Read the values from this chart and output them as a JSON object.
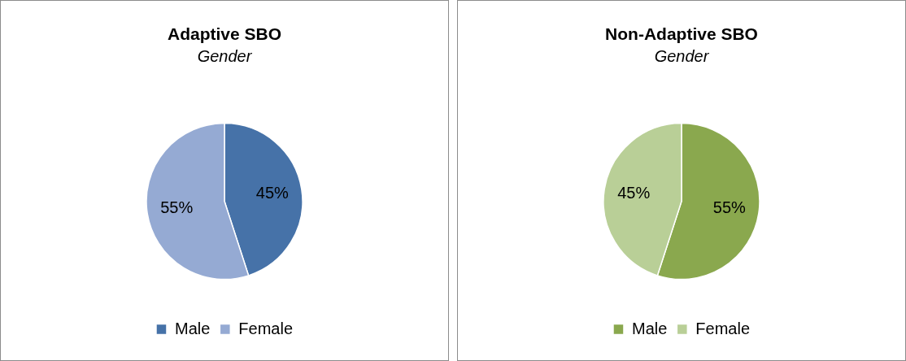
{
  "chart_data": [
    {
      "type": "pie",
      "title": "Adaptive SBO",
      "subtitle": "Gender",
      "categories": [
        "Male",
        "Female"
      ],
      "values": [
        45,
        55
      ],
      "colors": [
        "#4672a8",
        "#95aad3"
      ],
      "value_labels": [
        "45%",
        "55%"
      ],
      "legend": "bottom"
    },
    {
      "type": "pie",
      "title": "Non-Adaptive SBO",
      "subtitle": "Gender",
      "categories": [
        "Male",
        "Female"
      ],
      "values": [
        55,
        45
      ],
      "colors": [
        "#8aa84e",
        "#b9cf97"
      ],
      "value_labels": [
        "55%",
        "45%"
      ],
      "legend": "bottom"
    }
  ]
}
